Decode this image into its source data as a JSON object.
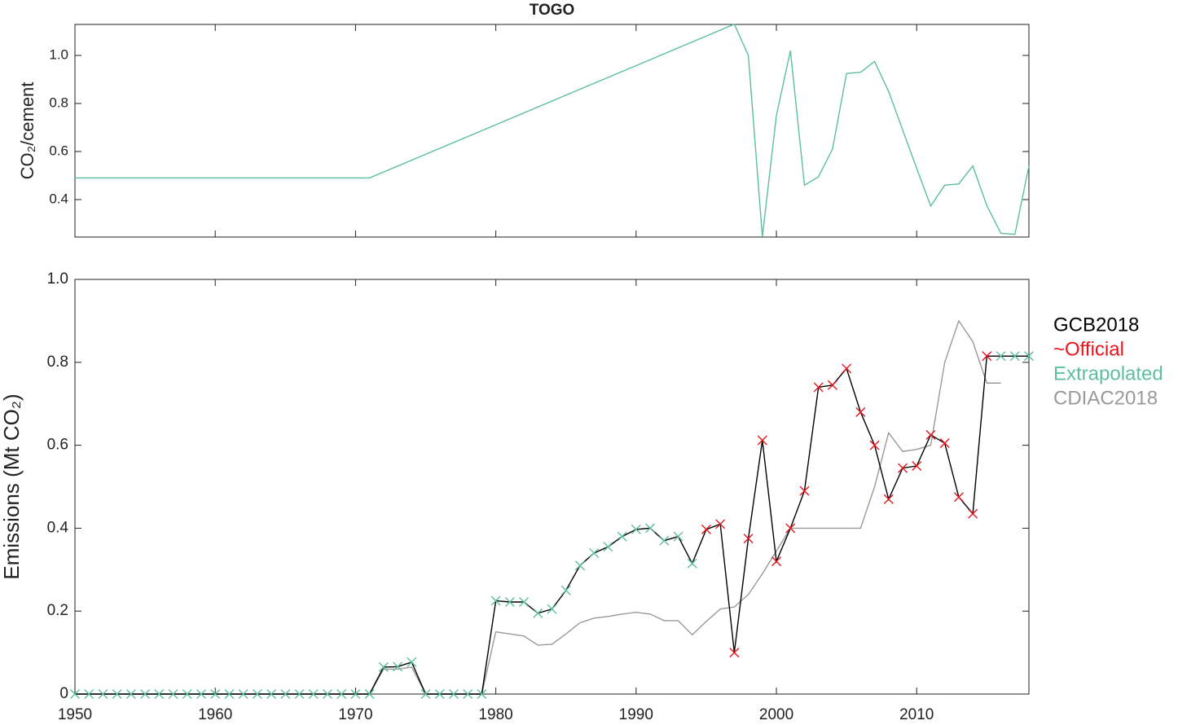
{
  "chart_data": [
    {
      "type": "line",
      "title": "TOGO",
      "y_label": "CO₂/cement",
      "x": [
        1950,
        1971,
        1997,
        1998,
        1999,
        2000,
        2001,
        2002,
        2003,
        2004,
        2005,
        2006,
        2007,
        2008,
        2009,
        2010,
        2011,
        2012,
        2013,
        2014,
        2015,
        2016,
        2017,
        2018
      ],
      "series": [
        {
          "name": null,
          "color": "#5dbf9c",
          "style": "line",
          "values": [
            0.49,
            0.49,
            1.13,
            1.0,
            0.245,
            0.75,
            1.02,
            0.46,
            0.495,
            0.61,
            0.925,
            0.93,
            0.975,
            0.85,
            0.69,
            0.53,
            0.373,
            0.46,
            0.465,
            0.54,
            0.375,
            0.26,
            0.255,
            0.54
          ]
        }
      ],
      "xlim": [
        1950,
        2018
      ],
      "xticks": [
        1960,
        1970,
        1980,
        1990,
        2000,
        2010
      ],
      "ylim": [
        0.244,
        1.129
      ],
      "yticks": [
        0.4,
        0.6,
        0.8,
        {
          "value": 1,
          "label": "1.0"
        }
      ]
    },
    {
      "type": "line",
      "y_label": "Emissions (Mt CO₂)",
      "x": [
        1950,
        1951,
        1952,
        1953,
        1954,
        1955,
        1956,
        1957,
        1958,
        1959,
        1960,
        1961,
        1962,
        1963,
        1964,
        1965,
        1966,
        1967,
        1968,
        1969,
        1970,
        1971,
        1972,
        1973,
        1974,
        1975,
        1976,
        1977,
        1978,
        1979,
        1980,
        1981,
        1982,
        1983,
        1984,
        1985,
        1986,
        1987,
        1988,
        1989,
        1990,
        1991,
        1992,
        1993,
        1994,
        1995,
        1996,
        1997,
        1998,
        1999,
        2000,
        2001,
        2002,
        2003,
        2004,
        2005,
        2006,
        2007,
        2008,
        2009,
        2010,
        2011,
        2012,
        2013,
        2014,
        2015,
        2016,
        2017,
        2018
      ],
      "series": [
        {
          "name": "GCB2018",
          "color": "#000000",
          "style": "line",
          "values": [
            0,
            0,
            0,
            0,
            0,
            0,
            0,
            0,
            0,
            0,
            0,
            0,
            0,
            0,
            0,
            0,
            0,
            0,
            0,
            0,
            0,
            0,
            0.065,
            0.066,
            0.077,
            0,
            0,
            0,
            0,
            0,
            0.225,
            0.222,
            0.222,
            0.195,
            0.205,
            0.25,
            0.31,
            0.34,
            0.355,
            0.38,
            0.397,
            0.4,
            0.37,
            0.38,
            0.315,
            0.397,
            0.41,
            0.1,
            0.375,
            0.612,
            0.32,
            0.4,
            0.49,
            0.74,
            0.745,
            0.785,
            0.68,
            0.6,
            0.47,
            0.545,
            0.55,
            0.625,
            0.605,
            0.475,
            0.435,
            0.815,
            0.815,
            0.815,
            0.815
          ]
        },
        {
          "name": "~Official",
          "color": "#e8141c",
          "style": "marker",
          "values": [
            null,
            null,
            null,
            null,
            null,
            null,
            null,
            null,
            null,
            null,
            null,
            null,
            null,
            null,
            null,
            null,
            null,
            null,
            null,
            null,
            null,
            null,
            null,
            null,
            null,
            null,
            null,
            null,
            null,
            null,
            null,
            null,
            null,
            null,
            null,
            null,
            null,
            null,
            null,
            null,
            null,
            null,
            null,
            null,
            null,
            0.397,
            0.41,
            0.1,
            0.375,
            0.612,
            0.32,
            0.4,
            0.49,
            0.74,
            0.745,
            0.785,
            0.68,
            0.6,
            0.47,
            0.545,
            0.55,
            0.625,
            0.605,
            0.475,
            0.435,
            0.815,
            null,
            null,
            null
          ]
        },
        {
          "name": "Extrapolated",
          "color": "#5dbf9c",
          "style": "marker",
          "values": [
            0,
            0,
            0,
            0,
            0,
            0,
            0,
            0,
            0,
            0,
            0,
            0,
            0,
            0,
            0,
            0,
            0,
            0,
            0,
            0,
            0,
            0,
            0.065,
            0.066,
            0.077,
            0,
            0,
            0,
            0,
            0,
            0.225,
            0.222,
            0.222,
            0.195,
            0.205,
            0.25,
            0.31,
            0.34,
            0.355,
            0.38,
            0.397,
            0.4,
            0.37,
            0.38,
            0.315,
            null,
            null,
            null,
            null,
            null,
            null,
            null,
            null,
            null,
            null,
            null,
            null,
            null,
            null,
            null,
            null,
            null,
            null,
            null,
            null,
            null,
            0.815,
            0.815,
            0.815
          ]
        },
        {
          "name": "CDIAC2018",
          "color": "#999999",
          "style": "line",
          "values": [
            0,
            0,
            0,
            0,
            0,
            0,
            0,
            0,
            0,
            0,
            0,
            0,
            0,
            0,
            0,
            0,
            0,
            0,
            0,
            0,
            0,
            0,
            0.06,
            0.06,
            0.065,
            0,
            0,
            0,
            0,
            0,
            0.15,
            0.145,
            0.14,
            0.118,
            0.12,
            0.145,
            0.172,
            0.183,
            0.187,
            0.193,
            0.197,
            0.193,
            0.177,
            0.177,
            0.143,
            0.175,
            0.205,
            0.21,
            0.24,
            0.29,
            0.345,
            0.4,
            0.4,
            0.4,
            0.4,
            0.4,
            0.4,
            0.5,
            0.63,
            0.585,
            0.59,
            0.6,
            0.8,
            0.9,
            0.85,
            0.75,
            0.75,
            null,
            null
          ]
        }
      ],
      "xlim": [
        1950,
        2018
      ],
      "xticks": [
        1950,
        1960,
        1970,
        1980,
        1990,
        2000,
        2010
      ],
      "ylim": [
        0,
        1
      ],
      "yticks": [
        0,
        0.2,
        0.4,
        0.6,
        0.8,
        {
          "value": 1,
          "label": "1.0"
        }
      ]
    }
  ]
}
